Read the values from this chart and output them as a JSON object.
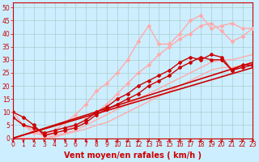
{
  "background_color": "#cceeff",
  "grid_color": "#aacccc",
  "xlabel": "Vent moyen/en rafales ( km/h )",
  "xlabel_color": "#cc0000",
  "xlabel_fontsize": 7,
  "ylabel_ticks": [
    0,
    5,
    10,
    15,
    20,
    25,
    30,
    35,
    40,
    45,
    50
  ],
  "xlabel_ticks": [
    0,
    1,
    2,
    3,
    4,
    5,
    6,
    7,
    8,
    9,
    10,
    11,
    12,
    13,
    14,
    15,
    16,
    17,
    18,
    19,
    20,
    21,
    22,
    23
  ],
  "xlim": [
    0,
    23
  ],
  "ylim": [
    0,
    52
  ],
  "lines": [
    {
      "x": [
        0,
        1,
        2,
        3,
        4,
        5,
        6,
        7,
        8,
        9,
        10,
        11,
        12,
        13,
        14,
        15,
        16,
        17,
        18,
        19,
        20,
        21,
        22,
        23
      ],
      "y": [
        0,
        0,
        0,
        0,
        0.5,
        1.5,
        2.5,
        3.5,
        5,
        6,
        8,
        10,
        12,
        14,
        16,
        18,
        20,
        22,
        24,
        26,
        27,
        27,
        28,
        29
      ],
      "color": "#ffaaaa",
      "lw": 1.0,
      "marker": null,
      "ms": 0
    },
    {
      "x": [
        0,
        1,
        2,
        3,
        4,
        5,
        6,
        7,
        8,
        9,
        10,
        11,
        12,
        13,
        14,
        15,
        16,
        17,
        18,
        19,
        20,
        21,
        22,
        23
      ],
      "y": [
        0,
        0,
        0,
        0,
        1,
        2,
        3,
        5,
        7,
        9,
        11,
        13,
        15,
        17,
        19,
        21,
        23,
        25,
        27,
        29,
        30,
        30,
        31,
        32
      ],
      "color": "#ffaaaa",
      "lw": 1.0,
      "marker": null,
      "ms": 0
    },
    {
      "x": [
        0,
        1,
        2,
        3,
        4,
        5,
        6,
        7,
        8,
        9,
        10,
        11,
        12,
        13,
        14,
        15,
        16,
        17,
        18,
        19,
        20,
        21,
        22,
        23
      ],
      "y": [
        8,
        5,
        2,
        1,
        3,
        6,
        9,
        13,
        18,
        21,
        25,
        30,
        37,
        43,
        36,
        36,
        40,
        45,
        47,
        42,
        43,
        44,
        42,
        42
      ],
      "color": "#ffaaaa",
      "lw": 1.0,
      "marker": "D",
      "ms": 2.0
    },
    {
      "x": [
        0,
        1,
        2,
        3,
        4,
        5,
        6,
        7,
        8,
        9,
        10,
        11,
        12,
        13,
        14,
        15,
        16,
        17,
        18,
        19,
        20,
        21,
        22,
        23
      ],
      "y": [
        10,
        5,
        3,
        1,
        2,
        3,
        5,
        7,
        10,
        13,
        17,
        21,
        25,
        28,
        32,
        35,
        38,
        40,
        43,
        44,
        41,
        37,
        39,
        42
      ],
      "color": "#ffaaaa",
      "lw": 1.0,
      "marker": "D",
      "ms": 2.0
    },
    {
      "x": [
        0,
        23
      ],
      "y": [
        0,
        27
      ],
      "color": "#cc0000",
      "lw": 1.2,
      "marker": null,
      "ms": 0
    },
    {
      "x": [
        0,
        23
      ],
      "y": [
        0,
        29
      ],
      "color": "#cc0000",
      "lw": 1.2,
      "marker": null,
      "ms": 0
    },
    {
      "x": [
        0,
        1,
        2,
        3,
        4,
        5,
        6,
        7,
        8,
        9,
        10,
        11,
        12,
        13,
        14,
        15,
        16,
        17,
        18,
        19,
        20,
        21,
        22,
        23
      ],
      "y": [
        8,
        5,
        4,
        2,
        3,
        4,
        5,
        7,
        10,
        12,
        15,
        17,
        20,
        22,
        24,
        26,
        29,
        31,
        30,
        32,
        31,
        26,
        27,
        28
      ],
      "color": "#cc0000",
      "lw": 1.0,
      "marker": "D",
      "ms": 2.0
    },
    {
      "x": [
        0,
        1,
        2,
        3,
        4,
        5,
        6,
        7,
        8,
        9,
        10,
        11,
        12,
        13,
        14,
        15,
        16,
        17,
        18,
        19,
        20,
        21,
        22,
        23
      ],
      "y": [
        10,
        8,
        5,
        1,
        2,
        3,
        4,
        6,
        9,
        11,
        13,
        15,
        17,
        20,
        22,
        24,
        27,
        29,
        31,
        30,
        30,
        26,
        28,
        28
      ],
      "color": "#cc0000",
      "lw": 1.0,
      "marker": "D",
      "ms": 2.0
    }
  ],
  "arrow_color": "#cc0000",
  "tick_fontsize": 5.5,
  "tick_color": "#cc0000",
  "spine_color": "#cc0000"
}
